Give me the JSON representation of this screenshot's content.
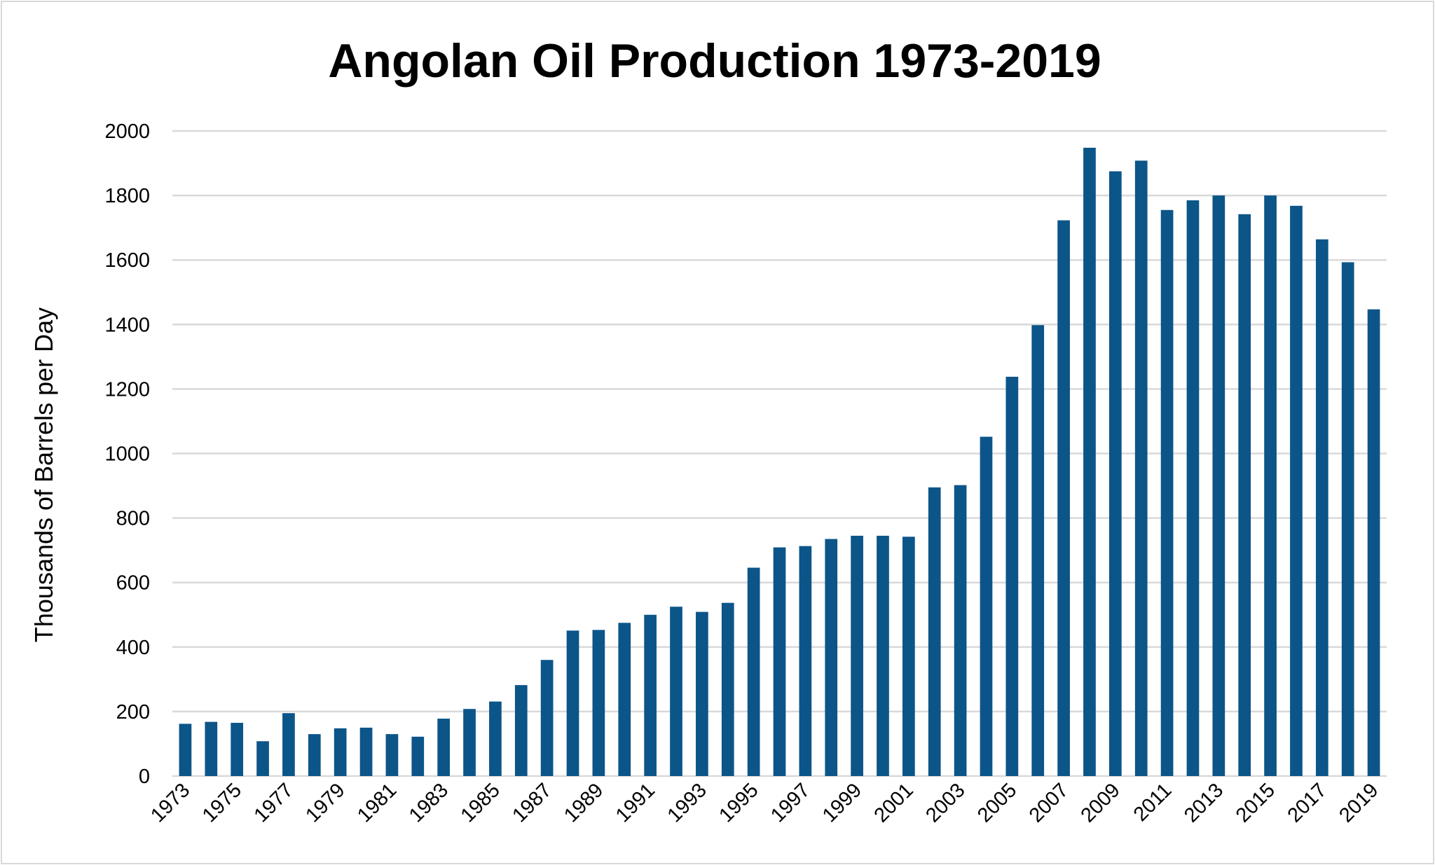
{
  "chart_data": {
    "type": "bar",
    "title": "Angolan Oil Production 1973-2019",
    "xlabel": "",
    "ylabel": "Thousands of Barrels per Day",
    "ylim": [
      0,
      2000
    ],
    "yticks": [
      0,
      200,
      400,
      600,
      800,
      1000,
      1200,
      1400,
      1600,
      1800,
      2000
    ],
    "grid": true,
    "bar_color": "#0B5589",
    "categories": [
      "1973",
      "1974",
      "1975",
      "1976",
      "1977",
      "1978",
      "1979",
      "1980",
      "1981",
      "1982",
      "1983",
      "1984",
      "1985",
      "1986",
      "1987",
      "1988",
      "1989",
      "1990",
      "1991",
      "1992",
      "1993",
      "1994",
      "1995",
      "1996",
      "1997",
      "1998",
      "1999",
      "2000",
      "2001",
      "2002",
      "2003",
      "2004",
      "2005",
      "2006",
      "2007",
      "2008",
      "2009",
      "2010",
      "2011",
      "2012",
      "2013",
      "2014",
      "2015",
      "2016",
      "2017",
      "2018",
      "2019"
    ],
    "xtick_labels_shown": [
      "1973",
      "1975",
      "1977",
      "1979",
      "1981",
      "1983",
      "1985",
      "1987",
      "1989",
      "1991",
      "1993",
      "1995",
      "1997",
      "1999",
      "2001",
      "2003",
      "2005",
      "2007",
      "2009",
      "2011",
      "2013",
      "2015",
      "2017",
      "2019"
    ],
    "values": [
      162,
      168,
      165,
      108,
      195,
      130,
      148,
      150,
      130,
      122,
      178,
      208,
      231,
      282,
      360,
      451,
      453,
      475,
      500,
      525,
      509,
      537,
      646,
      709,
      713,
      735,
      745,
      745,
      742,
      895,
      902,
      1052,
      1238,
      1398,
      1723,
      1948,
      1875,
      1908,
      1755,
      1785,
      1800,
      1742,
      1800,
      1768,
      1664,
      1593,
      1447
    ]
  }
}
